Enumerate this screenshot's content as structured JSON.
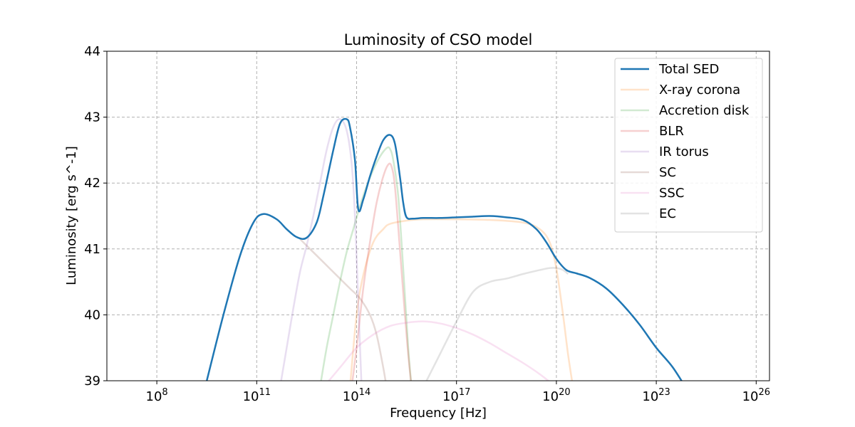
{
  "chart_data": {
    "type": "line",
    "title": "Luminosity of CSO model",
    "xlabel": "Frequency [Hz]",
    "ylabel": "Luminosity [erg s^-1]",
    "xscale": "log",
    "xlim_log10": [
      6.5,
      26.4
    ],
    "ylim": [
      39,
      44
    ],
    "x_ticks": [
      {
        "exp": 8,
        "base": "10",
        "sup": "8"
      },
      {
        "exp": 11,
        "base": "10",
        "sup": "11"
      },
      {
        "exp": 14,
        "base": "10",
        "sup": "14"
      },
      {
        "exp": 17,
        "base": "10",
        "sup": "17"
      },
      {
        "exp": 20,
        "base": "10",
        "sup": "20"
      },
      {
        "exp": 23,
        "base": "10",
        "sup": "23"
      },
      {
        "exp": 26,
        "base": "10",
        "sup": "26"
      }
    ],
    "y_ticks": [
      39,
      40,
      41,
      42,
      43,
      44
    ],
    "grid": true,
    "legend_position": "top-right",
    "series": [
      {
        "name": "Total SED",
        "color": "#1f77b4",
        "opacity": 1.0,
        "width": 2.5,
        "x": [
          9.5,
          10.0,
          10.5,
          10.9,
          11.2,
          11.6,
          11.9,
          12.2,
          12.5,
          12.8,
          13.0,
          13.3,
          13.5,
          13.7,
          13.8,
          13.95,
          14.05,
          14.2,
          14.4,
          14.6,
          14.8,
          15.0,
          15.15,
          15.3,
          15.4,
          15.5,
          15.7,
          16.0,
          16.5,
          17.0,
          17.5,
          18.0,
          18.5,
          19.0,
          19.4,
          19.7,
          20.0,
          20.3,
          20.6,
          21.0,
          21.5,
          22.0,
          22.5,
          23.0,
          23.5,
          24.0
        ],
        "y": [
          39.0,
          40.0,
          40.9,
          41.4,
          41.53,
          41.45,
          41.3,
          41.18,
          41.17,
          41.4,
          41.8,
          42.5,
          42.9,
          42.97,
          42.85,
          42.35,
          41.6,
          41.75,
          42.1,
          42.4,
          42.65,
          42.73,
          42.6,
          42.1,
          41.7,
          41.48,
          41.46,
          41.47,
          41.47,
          41.48,
          41.49,
          41.5,
          41.48,
          41.44,
          41.3,
          41.1,
          40.85,
          40.68,
          40.63,
          40.56,
          40.4,
          40.15,
          39.85,
          39.5,
          39.2,
          38.8
        ]
      },
      {
        "name": "X-ray corona",
        "color": "#ff7f0e",
        "opacity": 0.22,
        "width": 2.5,
        "x": [
          13.8,
          14.0,
          14.2,
          14.5,
          14.8,
          15.0,
          15.5,
          16.0,
          17.0,
          18.0,
          19.0,
          19.5,
          19.8,
          20.0,
          20.2,
          20.35,
          20.5
        ],
        "y": [
          38.9,
          40.0,
          40.6,
          41.1,
          41.3,
          41.38,
          41.43,
          41.45,
          41.45,
          41.44,
          41.4,
          41.3,
          41.1,
          40.7,
          40.0,
          39.4,
          38.9
        ]
      },
      {
        "name": "Accretion disk",
        "color": "#2ca02c",
        "opacity": 0.22,
        "width": 2.5,
        "x": [
          12.9,
          13.1,
          13.3,
          13.5,
          13.7,
          13.9,
          14.1,
          14.3,
          14.5,
          14.7,
          14.9,
          15.0,
          15.1,
          15.25,
          15.4,
          15.55,
          15.65
        ],
        "y": [
          38.9,
          39.5,
          40.0,
          40.5,
          40.95,
          41.3,
          41.65,
          41.95,
          42.2,
          42.4,
          42.53,
          42.52,
          42.35,
          41.8,
          40.7,
          39.5,
          38.9
        ]
      },
      {
        "name": "BLR",
        "color": "#d62728",
        "opacity": 0.22,
        "width": 2.5,
        "x": [
          13.85,
          14.0,
          14.2,
          14.4,
          14.6,
          14.8,
          14.95,
          15.05,
          15.15,
          15.3,
          15.45,
          15.55,
          15.65
        ],
        "y": [
          38.9,
          39.5,
          40.4,
          41.1,
          41.7,
          42.1,
          42.28,
          42.25,
          41.95,
          41.0,
          40.0,
          39.4,
          38.9
        ]
      },
      {
        "name": "IR torus",
        "color": "#9467bd",
        "opacity": 0.22,
        "width": 2.5,
        "x": [
          11.7,
          11.9,
          12.1,
          12.3,
          12.5,
          12.7,
          12.9,
          13.1,
          13.3,
          13.5,
          13.7,
          13.85,
          13.95,
          14.05,
          14.15
        ],
        "y": [
          38.9,
          39.5,
          40.1,
          40.65,
          41.05,
          41.5,
          42.0,
          42.5,
          42.85,
          42.97,
          42.8,
          42.3,
          41.5,
          40.2,
          38.9
        ]
      },
      {
        "name": "SC",
        "color": "#8c564b",
        "opacity": 0.22,
        "width": 2.5,
        "x": [
          12.3,
          12.6,
          12.9,
          13.2,
          13.5,
          13.8,
          14.1,
          14.4,
          14.6,
          14.8,
          14.9
        ],
        "y": [
          41.15,
          41.0,
          40.85,
          40.7,
          40.55,
          40.4,
          40.25,
          40.0,
          39.7,
          39.2,
          38.9
        ]
      },
      {
        "name": "SSC",
        "color": "#e377c2",
        "opacity": 0.22,
        "width": 2.5,
        "x": [
          13.0,
          13.5,
          14.0,
          14.5,
          15.0,
          15.5,
          16.0,
          16.5,
          17.0,
          17.5,
          18.0,
          18.5,
          19.0,
          19.5,
          20.0
        ],
        "y": [
          38.9,
          39.2,
          39.5,
          39.7,
          39.83,
          39.88,
          39.9,
          39.87,
          39.8,
          39.7,
          39.57,
          39.42,
          39.27,
          39.1,
          38.9
        ]
      },
      {
        "name": "EC",
        "color": "#7f7f7f",
        "opacity": 0.22,
        "width": 2.5,
        "x": [
          16.0,
          16.5,
          17.0,
          17.5,
          18.0,
          18.5,
          19.0,
          19.5,
          19.8,
          20.0,
          20.2,
          20.35
        ],
        "y": [
          38.9,
          39.4,
          39.9,
          40.35,
          40.5,
          40.55,
          40.62,
          40.68,
          40.71,
          40.71,
          40.68,
          40.62
        ]
      }
    ]
  }
}
